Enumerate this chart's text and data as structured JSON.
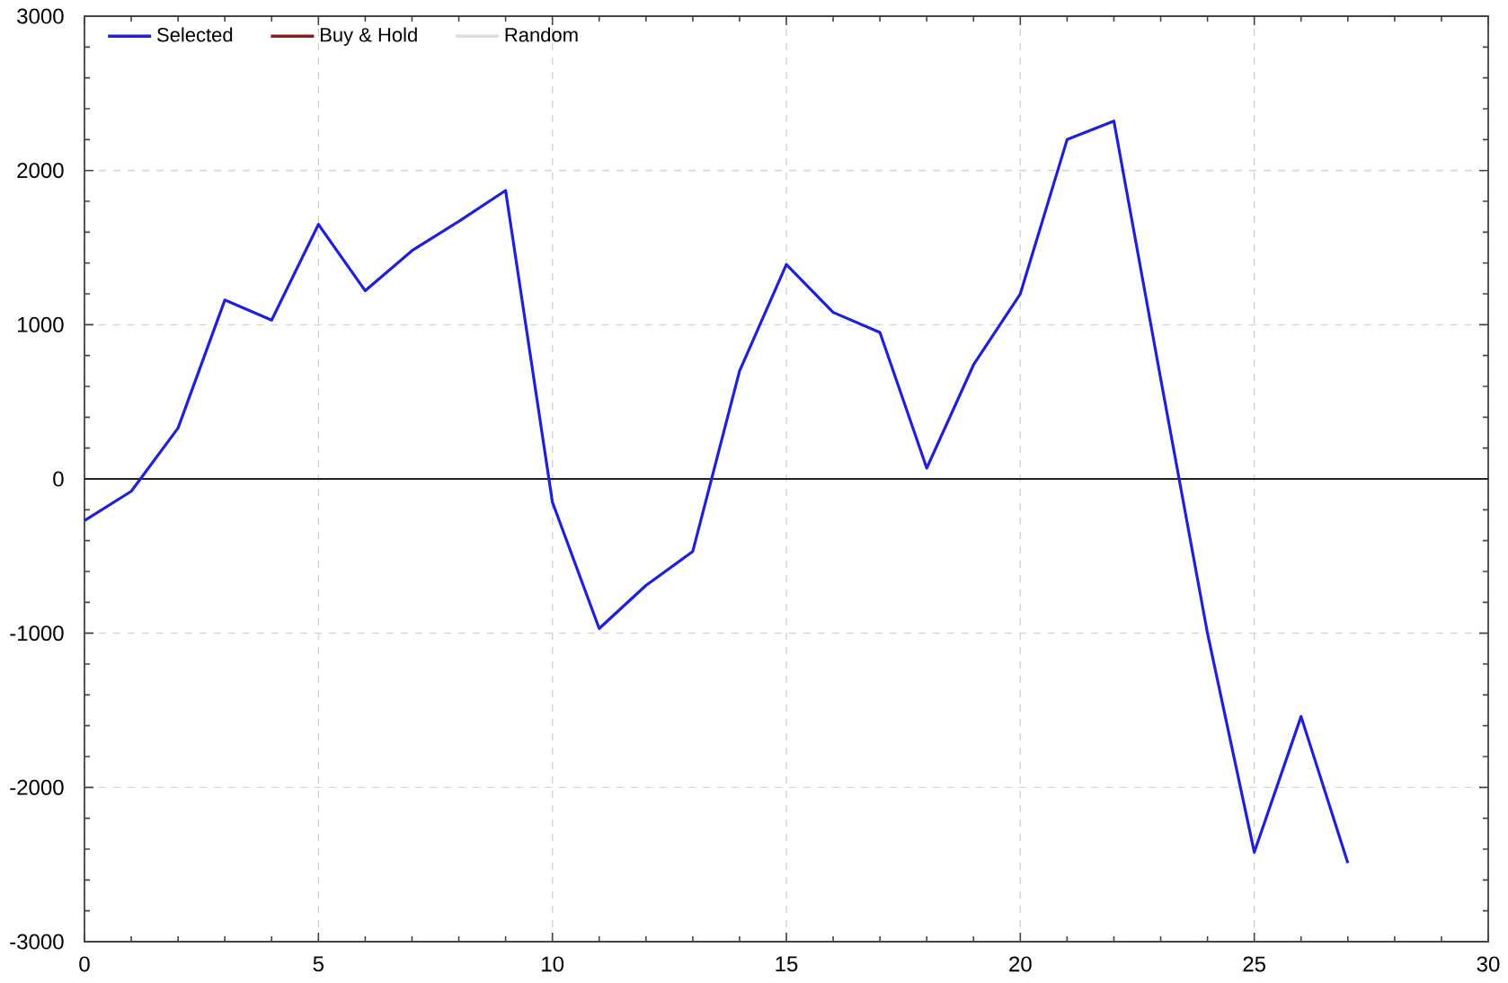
{
  "chart_data": {
    "type": "line",
    "x": [
      0,
      1,
      2,
      3,
      4,
      5,
      6,
      7,
      8,
      9,
      10,
      11,
      12,
      13,
      14,
      15,
      16,
      17,
      18,
      19,
      20,
      21,
      22,
      23,
      24,
      25,
      26,
      27
    ],
    "series": [
      {
        "name": "Selected",
        "color": "#1f1fdc",
        "values": [
          -270,
          -80,
          330,
          1160,
          1030,
          1650,
          1220,
          1480,
          1670,
          1870,
          -150,
          -970,
          -690,
          -470,
          700,
          1390,
          1080,
          950,
          70,
          740,
          1200,
          2200,
          2320,
          650,
          -1000,
          -2420,
          -1540,
          -2490
        ]
      },
      {
        "name": "Buy & Hold",
        "color": "#8b1c1c",
        "values": [
          null,
          null,
          null,
          null,
          null,
          null,
          null,
          null,
          null,
          null,
          null,
          null,
          null,
          null,
          null,
          null,
          null,
          null,
          null,
          null,
          null,
          null,
          null,
          null,
          null,
          null,
          null,
          null
        ]
      },
      {
        "name": "Random",
        "color": "#dedede",
        "values": [
          null,
          null,
          null,
          null,
          null,
          null,
          null,
          null,
          null,
          null,
          null,
          null,
          null,
          null,
          null,
          null,
          null,
          null,
          null,
          null,
          null,
          null,
          null,
          null,
          null,
          null,
          null,
          null
        ]
      }
    ],
    "xlim": [
      0,
      30
    ],
    "ylim": [
      -3000,
      3000
    ],
    "xticks": [
      0,
      5,
      10,
      15,
      20,
      25,
      30
    ],
    "yticks": [
      -3000,
      -2000,
      -1000,
      0,
      1000,
      2000,
      3000
    ],
    "grid": true,
    "legend": "top left",
    "ref_lines": [
      {
        "axis": "y",
        "value": 0,
        "color": "#222222"
      }
    ]
  }
}
